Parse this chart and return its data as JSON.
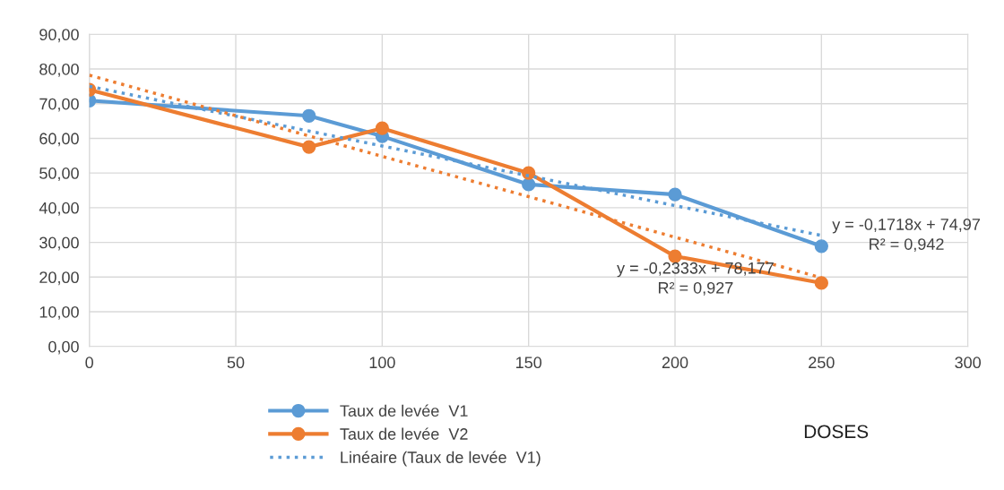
{
  "chart_data": {
    "type": "line",
    "xlabel": "DOSES",
    "x": [
      0,
      75,
      100,
      150,
      200,
      250
    ],
    "series": [
      {
        "name": "Taux de levée  V1",
        "color": "#5b9bd5",
        "values": [
          70.9,
          66.5,
          60.6,
          46.7,
          43.8,
          28.9
        ],
        "marker": "circle",
        "line_style": "solid"
      },
      {
        "name": "Taux de levée  V2",
        "color": "#ed7d31",
        "values": [
          74.0,
          57.5,
          62.9,
          50.0,
          26.0,
          18.3
        ],
        "marker": "circle",
        "line_style": "solid"
      },
      {
        "name": "Linéaire (Taux de levée  V1)",
        "color": "#5b9bd5",
        "values": [
          75.0,
          62.1,
          57.8,
          49.2,
          40.6,
          32.0
        ],
        "marker": "none",
        "line_style": "dotted"
      },
      {
        "color": "#ed7d31",
        "values": [
          78.2,
          60.7,
          54.8,
          43.2,
          31.5,
          19.8
        ],
        "marker": "none",
        "line_style": "dotted"
      }
    ],
    "annotations": [
      "y = -0,1718x + 74,97\nR² = 0,942",
      "y = -0,2333x + 78,177\nR² = 0,927"
    ],
    "xlim": [
      0,
      300
    ],
    "xticks": [
      0,
      50,
      100,
      150,
      200,
      250,
      300
    ],
    "ylim": [
      0,
      90
    ],
    "yticks": [
      {
        "value": 0,
        "label": "0,00"
      },
      {
        "value": 10,
        "label": "10,00"
      },
      {
        "value": 20,
        "label": "20,00"
      },
      {
        "value": 30,
        "label": "30,00"
      },
      {
        "value": 40,
        "label": "40,00"
      },
      {
        "value": 50,
        "label": "50,00"
      },
      {
        "value": 60,
        "label": "60,00"
      },
      {
        "value": 70,
        "label": "70,00"
      },
      {
        "value": 80,
        "label": "80,00"
      },
      {
        "value": 90,
        "label": "90,00"
      }
    ],
    "grid": true,
    "legend": "bottom"
  }
}
